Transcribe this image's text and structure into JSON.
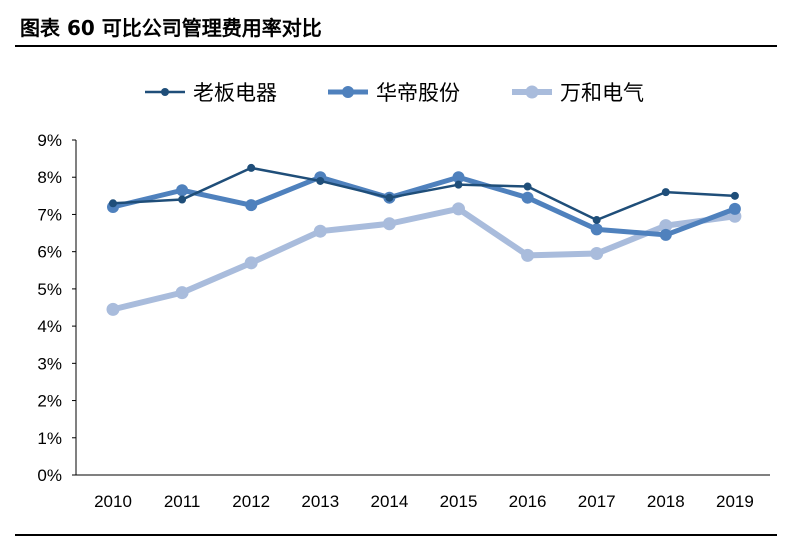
{
  "title": "图表 60 可比公司管理费用率对比",
  "chart_data": {
    "type": "line",
    "title": "图表 60 可比公司管理费用率对比",
    "x": [
      "2010",
      "2011",
      "2012",
      "2013",
      "2014",
      "2015",
      "2016",
      "2017",
      "2018",
      "2019"
    ],
    "ylim": [
      0,
      9
    ],
    "yticks": [
      "0%",
      "1%",
      "2%",
      "3%",
      "4%",
      "5%",
      "6%",
      "7%",
      "8%",
      "9%"
    ],
    "ylabel": "",
    "xlabel": "",
    "legend_position": "top",
    "grid": false,
    "series": [
      {
        "name": "老板电器",
        "color": "#1f4e79",
        "values": [
          7.3,
          7.4,
          8.25,
          7.9,
          7.45,
          7.8,
          7.75,
          6.85,
          7.6,
          7.5
        ]
      },
      {
        "name": "华帝股份",
        "color": "#4f81bd",
        "values": [
          7.2,
          7.65,
          7.25,
          8.0,
          7.45,
          8.0,
          7.45,
          6.6,
          6.45,
          7.15
        ]
      },
      {
        "name": "万和电气",
        "color": "#a9bcdc",
        "values": [
          4.45,
          4.9,
          5.7,
          6.55,
          6.75,
          7.15,
          5.9,
          5.95,
          6.7,
          6.95
        ]
      }
    ]
  }
}
